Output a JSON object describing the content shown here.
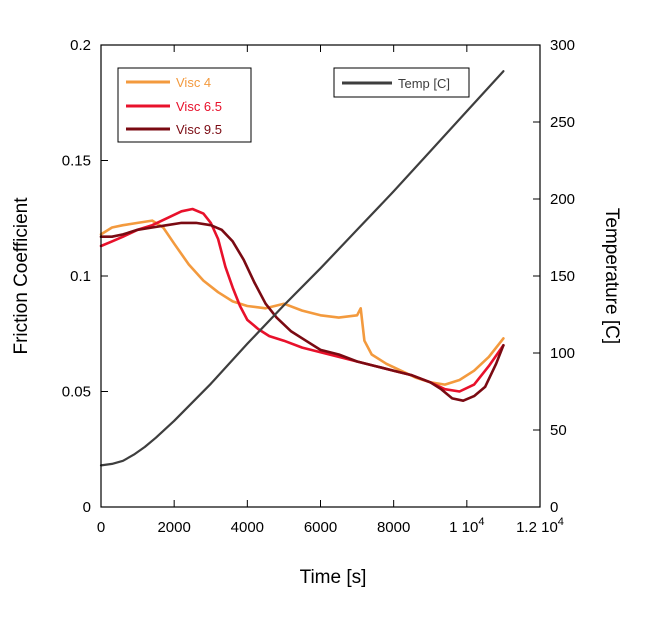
{
  "colors": {
    "axis": "#000000",
    "visc4": "#f39a3e",
    "visc65": "#e8112b",
    "visc95": "#7a0a12",
    "temp": "#3e3e3e"
  },
  "chart_data": {
    "type": "line",
    "xlabel": "Time [s]",
    "ylabel": "Friction Coefficient",
    "y2label": "Temperature [C]",
    "xlim": [
      0,
      12000
    ],
    "ylim": [
      0,
      0.2
    ],
    "y2lim": [
      0,
      300
    ],
    "x_ticks": [
      0,
      2000,
      4000,
      6000,
      8000,
      10000,
      12000
    ],
    "x_tick_labels": [
      "0",
      "2000",
      "4000",
      "6000",
      "8000",
      "1 10",
      "1.2 10"
    ],
    "x_tick_exponents": [
      "",
      "",
      "",
      "",
      "",
      "4",
      "4"
    ],
    "y_ticks": [
      0,
      0.05,
      0.1,
      0.15,
      0.2
    ],
    "y_tick_labels": [
      "0",
      "0.05",
      "0.1",
      "0.15",
      "0.2"
    ],
    "y2_ticks": [
      0,
      50,
      100,
      150,
      200,
      250,
      300
    ],
    "y2_tick_labels": [
      "0",
      "50",
      "100",
      "150",
      "200",
      "250",
      "300"
    ],
    "grid": false,
    "legend_friction": {
      "placement": "top-left",
      "entries": [
        "Visc 4",
        "Visc 6.5",
        "Visc 9.5"
      ]
    },
    "legend_temp": {
      "placement": "top-center-right",
      "entries": [
        "Temp [C]"
      ]
    },
    "series": [
      {
        "name": "Visc 4",
        "axis": "left",
        "color": "#f39a3e",
        "x": [
          0,
          300,
          600,
          1000,
          1400,
          1700,
          2000,
          2400,
          2800,
          3200,
          3600,
          4000,
          4500,
          5000,
          5500,
          6000,
          6500,
          7000,
          7100,
          7200,
          7400,
          7800,
          8200,
          8600,
          9000,
          9400,
          9800,
          10200,
          10600,
          11000
        ],
        "y": [
          0.118,
          0.121,
          0.122,
          0.123,
          0.124,
          0.121,
          0.114,
          0.105,
          0.098,
          0.093,
          0.089,
          0.087,
          0.086,
          0.088,
          0.085,
          0.083,
          0.082,
          0.083,
          0.086,
          0.072,
          0.066,
          0.062,
          0.059,
          0.056,
          0.054,
          0.053,
          0.055,
          0.059,
          0.065,
          0.073
        ]
      },
      {
        "name": "Visc 6.5",
        "axis": "left",
        "color": "#e8112b",
        "x": [
          0,
          300,
          600,
          1000,
          1400,
          1800,
          2200,
          2500,
          2800,
          3000,
          3200,
          3400,
          3600,
          3800,
          4000,
          4300,
          4600,
          5000,
          5500,
          6000,
          6500,
          7000,
          7500,
          8000,
          8500,
          9000,
          9400,
          9800,
          10200,
          10600,
          11000
        ],
        "y": [
          0.113,
          0.115,
          0.117,
          0.12,
          0.122,
          0.125,
          0.128,
          0.129,
          0.127,
          0.123,
          0.116,
          0.104,
          0.095,
          0.087,
          0.081,
          0.077,
          0.074,
          0.072,
          0.069,
          0.067,
          0.065,
          0.063,
          0.061,
          0.059,
          0.057,
          0.054,
          0.051,
          0.05,
          0.053,
          0.061,
          0.07
        ]
      },
      {
        "name": "Visc 9.5",
        "axis": "left",
        "color": "#7a0a12",
        "x": [
          0,
          300,
          600,
          1000,
          1400,
          1800,
          2200,
          2600,
          3000,
          3300,
          3600,
          3900,
          4200,
          4500,
          4800,
          5200,
          5600,
          6000,
          6500,
          7000,
          7500,
          8000,
          8500,
          9000,
          9300,
          9600,
          9900,
          10200,
          10500,
          10800,
          11000
        ],
        "y": [
          0.117,
          0.117,
          0.118,
          0.12,
          0.121,
          0.122,
          0.123,
          0.123,
          0.122,
          0.12,
          0.115,
          0.107,
          0.097,
          0.088,
          0.082,
          0.076,
          0.072,
          0.068,
          0.066,
          0.063,
          0.061,
          0.059,
          0.057,
          0.054,
          0.051,
          0.047,
          0.046,
          0.048,
          0.052,
          0.062,
          0.07
        ]
      },
      {
        "name": "Temp [C]",
        "axis": "right",
        "color": "#3e3e3e",
        "x": [
          0,
          300,
          600,
          900,
          1200,
          1500,
          2000,
          3000,
          4000,
          5000,
          6000,
          7000,
          8000,
          9000,
          10000,
          11000
        ],
        "y": [
          27,
          28,
          30,
          34,
          39,
          45,
          56,
          80,
          106,
          131,
          155,
          180,
          205,
          231,
          257,
          283
        ]
      }
    ]
  }
}
